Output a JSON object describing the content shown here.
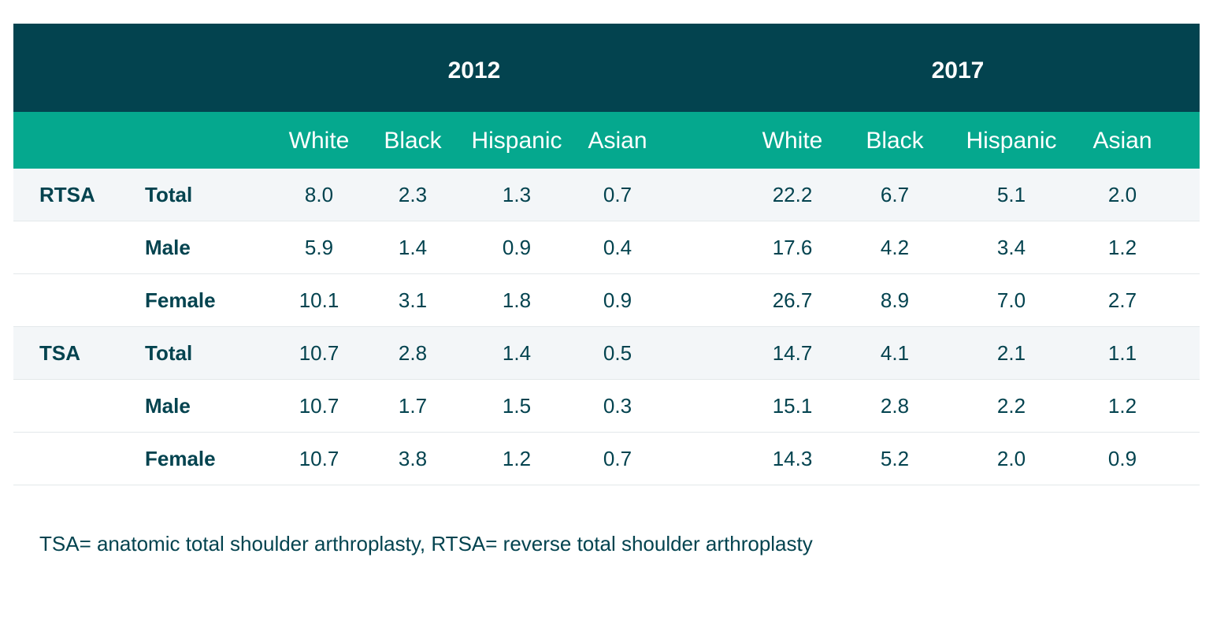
{
  "chart_data": {
    "type": "table",
    "years": [
      "2012",
      "2017"
    ],
    "groups": [
      "White",
      "Black",
      "Hispanic",
      "Asian"
    ],
    "rows": [
      {
        "procedure": "RTSA",
        "sex": "Total",
        "values_2012": [
          "8.0",
          "2.3",
          "1.3",
          "0.7"
        ],
        "values_2017": [
          "22.2",
          "6.7",
          "5.1",
          "2.0"
        ]
      },
      {
        "procedure": "",
        "sex": "Male",
        "values_2012": [
          "5.9",
          "1.4",
          "0.9",
          "0.4"
        ],
        "values_2017": [
          "17.6",
          "4.2",
          "3.4",
          "1.2"
        ]
      },
      {
        "procedure": "",
        "sex": "Female",
        "values_2012": [
          "10.1",
          "3.1",
          "1.8",
          "0.9"
        ],
        "values_2017": [
          "26.7",
          "8.9",
          "7.0",
          "2.7"
        ]
      },
      {
        "procedure": "TSA",
        "sex": "Total",
        "values_2012": [
          "10.7",
          "2.8",
          "1.4",
          "0.5"
        ],
        "values_2017": [
          "14.7",
          "4.1",
          "2.1",
          "1.1"
        ]
      },
      {
        "procedure": "",
        "sex": "Male",
        "values_2012": [
          "10.7",
          "1.7",
          "1.5",
          "0.3"
        ],
        "values_2017": [
          "15.1",
          "2.8",
          "2.2",
          "1.2"
        ]
      },
      {
        "procedure": "",
        "sex": "Female",
        "values_2012": [
          "10.7",
          "3.8",
          "1.2",
          "0.7"
        ],
        "values_2017": [
          "14.3",
          "5.2",
          "2.0",
          "0.9"
        ]
      }
    ],
    "note": "TSA= anatomic total shoulder arthroplasty, RTSA= reverse total shoulder arthroplasty"
  },
  "colors": {
    "header_dark": "#03434f",
    "header_teal": "#05a88e",
    "row_shade": "#f3f6f8",
    "text": "#03434f"
  }
}
